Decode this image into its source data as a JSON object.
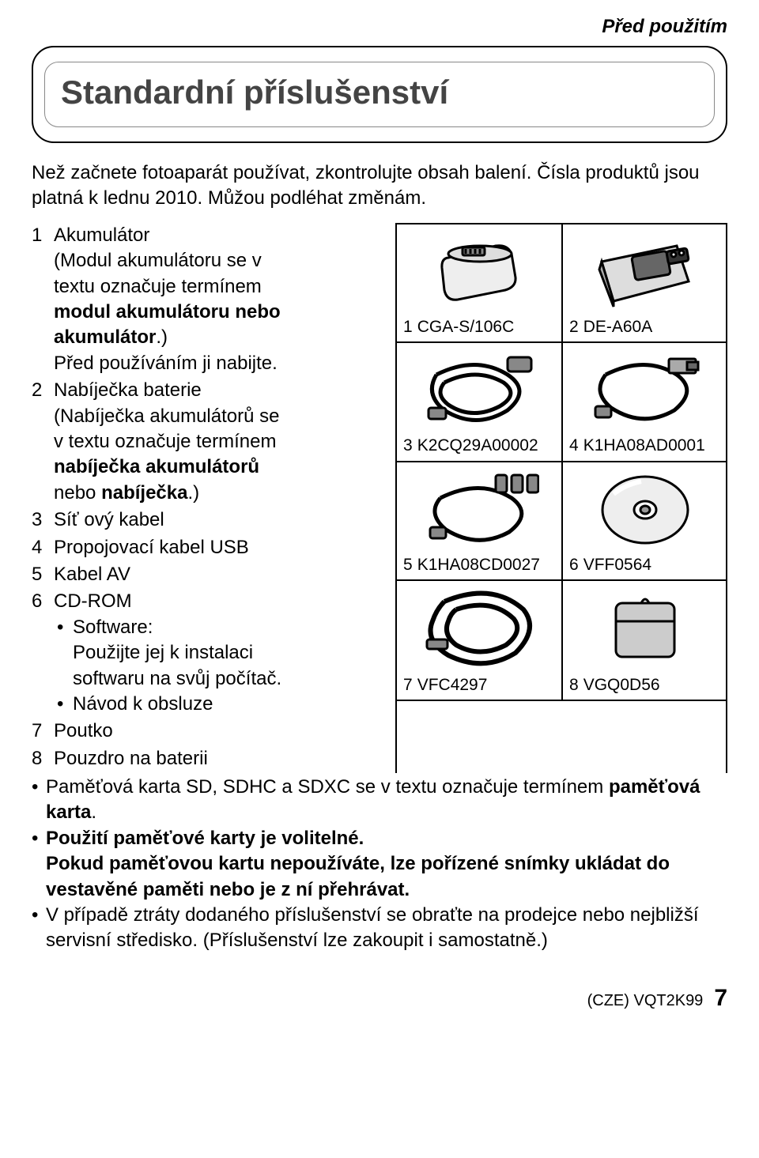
{
  "header_label": "Před použitím",
  "title": "Standardní příslušenství",
  "intro": "Než začnete fotoaparát používat, zkontrolujte obsah balení. Čísla produktů jsou platná k lednu 2010. Můžou podléhat změnám.",
  "items": [
    {
      "num": "1",
      "lines": [
        "Akumulátor",
        "(Modul akumulátoru se v",
        "textu označuje termínem"
      ],
      "bold_lines": [
        "modul akumulátoru nebo",
        "akumulátor.)"
      ],
      "after_bold": "Před používáním ji nabijte.",
      "after_bold_wrap": ")"
    },
    {
      "num": "2",
      "lines": [
        "Nabíječka baterie",
        "(Nabíječka akumulátorů se",
        "v textu označuje termínem"
      ],
      "bold_lines": [
        "nabíječka akumulátorů",
        "nebo nabíječka.)"
      ]
    },
    {
      "num": "3",
      "text": "Síť ový kabel"
    },
    {
      "num": "4",
      "text": "Propojovací kabel USB"
    },
    {
      "num": "5",
      "text": "Kabel AV"
    },
    {
      "num": "6",
      "text": "CD-ROM",
      "subs": [
        {
          "bullet": true,
          "text": "Software:"
        },
        {
          "bullet": false,
          "text": "Použijte jej k instalaci"
        },
        {
          "bullet": false,
          "text": "softwaru na svůj počítač."
        },
        {
          "bullet": true,
          "text": "Návod k obsluze"
        }
      ]
    },
    {
      "num": "7",
      "text": "Poutko"
    },
    {
      "num": "8",
      "text": "Pouzdro na baterii"
    }
  ],
  "grid": [
    [
      {
        "num": "1",
        "code": "CGA-S/106C",
        "icon": "battery"
      },
      {
        "num": "2",
        "code": "DE-A60A",
        "icon": "charger"
      }
    ],
    [
      {
        "num": "3",
        "code": "K2CQ29A00002",
        "icon": "ac-cable"
      },
      {
        "num": "4",
        "code": "K1HA08AD0001",
        "icon": "usb-cable"
      }
    ],
    [
      {
        "num": "5",
        "code": "K1HA08CD0027",
        "icon": "av-cable"
      },
      {
        "num": "6",
        "code": "VFF0564",
        "icon": "cd"
      }
    ],
    [
      {
        "num": "7",
        "code": "VFC4297",
        "icon": "strap"
      },
      {
        "num": "8",
        "code": "VGQ0D56",
        "icon": "case"
      }
    ]
  ],
  "bottom_bullets": [
    {
      "lines": [
        "Paměťová karta SD, SDHC a SDXC se v textu označuje termínem <b>paměťová karta</b>."
      ]
    },
    {
      "lines": [
        "<b>Použití paměťové karty je volitelné.</b>",
        "<b>Pokud paměťovou kartu nepoužíváte, lze pořízené snímky ukládat do vestavěné paměti nebo je z ní přehrávat.</b>"
      ]
    },
    {
      "lines": [
        "V případě ztráty dodaného příslušenství se obraťte na prodejce nebo nejbližší servisní středisko. (Příslušenství lze zakoupit i samostatně.)"
      ]
    }
  ],
  "footer_left": "(CZE) VQT2K99",
  "footer_page": "7",
  "colors": {
    "text": "#000000",
    "title": "#444444",
    "border": "#000000",
    "inner_border": "#888888"
  },
  "fonts": {
    "body_size": 24,
    "title_size": 42,
    "cell_label_size": 21
  }
}
